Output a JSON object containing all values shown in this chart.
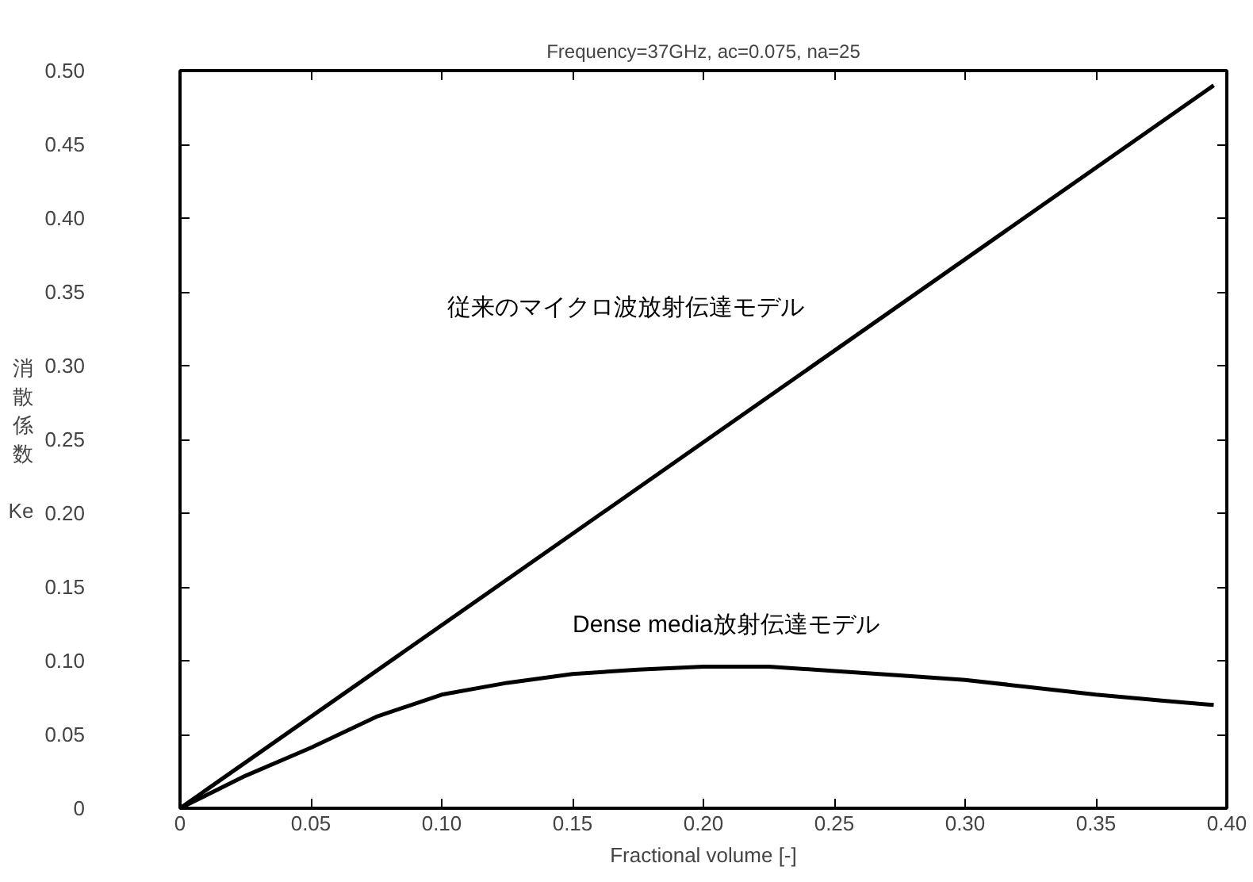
{
  "chart_data": {
    "type": "line",
    "title": "Frequency=37GHz, ac=0.075, na=25",
    "xlabel": "Fractional volume [-]",
    "ylabel": "消散係数 Ke",
    "xlim": [
      0,
      0.4
    ],
    "ylim": [
      0,
      0.5
    ],
    "xticks": [
      0,
      {
        "value": 0.05,
        "label": "0.05"
      },
      {
        "value": 0.1,
        "label": "0.10"
      },
      {
        "value": 0.15,
        "label": "0.15"
      },
      {
        "value": 0.2,
        "label": "0.20"
      },
      {
        "value": 0.25,
        "label": "0.25"
      },
      {
        "value": 0.3,
        "label": "0.30"
      },
      {
        "value": 0.35,
        "label": "0.35"
      },
      {
        "value": 0.4,
        "label": "0.40"
      }
    ],
    "yticks": [
      0,
      {
        "value": 0.05,
        "label": "0.05"
      },
      {
        "value": 0.1,
        "label": "0.10"
      },
      {
        "value": 0.15,
        "label": "0.15"
      },
      {
        "value": 0.2,
        "label": "0.20"
      },
      {
        "value": 0.25,
        "label": "0.25"
      },
      {
        "value": 0.3,
        "label": "0.30"
      },
      {
        "value": 0.35,
        "label": "0.35"
      },
      {
        "value": 0.4,
        "label": "0.40"
      },
      {
        "value": 0.45,
        "label": "0.45"
      },
      {
        "value": 0.5,
        "label": "0.50"
      }
    ],
    "grid": false,
    "legend": false,
    "marker": "none",
    "line_style": "solid",
    "series": [
      {
        "name": "従来のマイクロ波放射伝達モデル",
        "color": "#000000",
        "x": [
          0,
          0.395
        ],
        "values": [
          0,
          0.49
        ]
      },
      {
        "name": "Dense media放射伝達モデル",
        "color": "#000000",
        "x": [
          0,
          0.025,
          0.05,
          0.075,
          0.1,
          0.125,
          0.15,
          0.175,
          0.2,
          0.225,
          0.25,
          0.275,
          0.3,
          0.325,
          0.35,
          0.375,
          0.395
        ],
        "values": [
          0,
          0.022,
          0.041,
          0.062,
          0.077,
          0.085,
          0.091,
          0.094,
          0.096,
          0.096,
          0.093,
          0.09,
          0.087,
          0.082,
          0.077,
          0.073,
          0.07
        ]
      }
    ]
  }
}
